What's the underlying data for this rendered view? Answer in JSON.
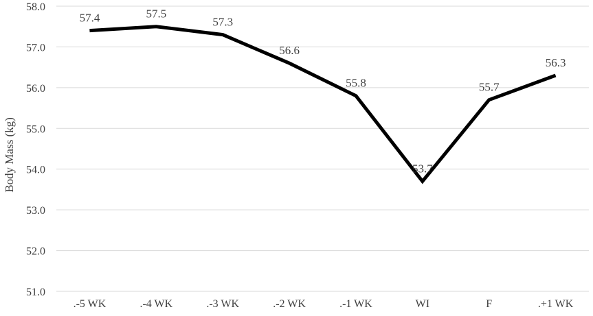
{
  "chart_data": {
    "type": "line",
    "title": "",
    "xlabel": "",
    "ylabel": "Body Mass (kg)",
    "categories": [
      ".-5 WK",
      ".-4 WK",
      ".-3 WK",
      ".-2 WK",
      ".-1 WK",
      "WI",
      "F",
      ".+1 WK"
    ],
    "series": [
      {
        "values": [
          57.4,
          57.5,
          57.3,
          56.6,
          55.8,
          53.7,
          55.7,
          56.3
        ],
        "labels": [
          "57.4",
          "57.5",
          "57.3",
          "56.6",
          "55.8",
          "53.7",
          "55.7",
          "56.3"
        ]
      }
    ],
    "ylim": [
      51.0,
      58.0
    ],
    "yticks": [
      "51.0",
      "52.0",
      "53.0",
      "54.0",
      "55.0",
      "56.0",
      "57.0",
      "58.0"
    ],
    "grid": true,
    "legend": "none",
    "line_color": "#000000"
  }
}
